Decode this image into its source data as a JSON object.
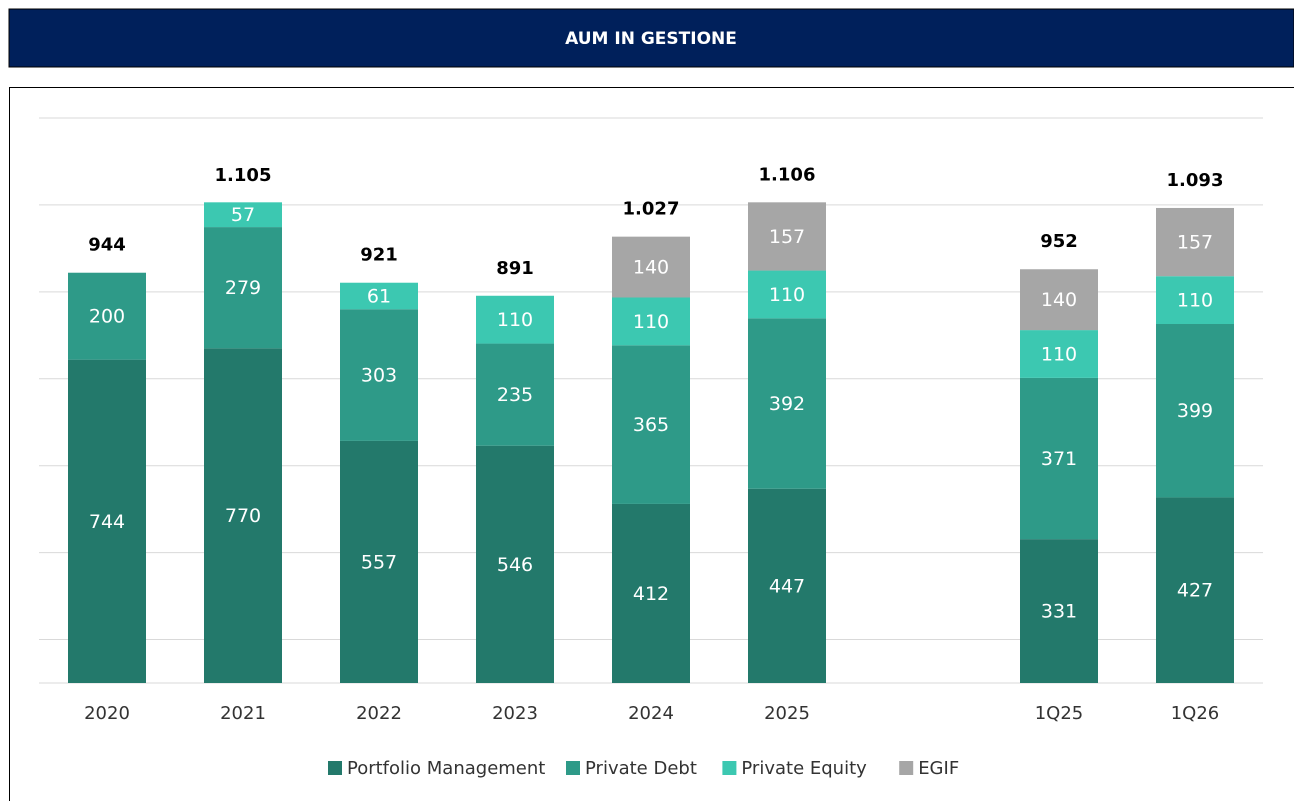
{
  "header": {
    "title": "AUM IN GESTIONE"
  },
  "chart_data": {
    "type": "stacked-bar",
    "categories": [
      "2020",
      "2021",
      "2022",
      "2023",
      "2024",
      "2025",
      null,
      "1Q25",
      "1Q26"
    ],
    "series": [
      {
        "name": "Portfolio Management",
        "color": "#23796b",
        "values": [
          744,
          770,
          557,
          546,
          412,
          447,
          null,
          331,
          427
        ]
      },
      {
        "name": "Private Debt",
        "color": "#2e9a88",
        "values": [
          200,
          279,
          303,
          235,
          365,
          392,
          null,
          371,
          399
        ]
      },
      {
        "name": "Private Equity",
        "color": "#3cc8b1",
        "values": [
          null,
          57,
          61,
          110,
          110,
          110,
          null,
          110,
          110
        ]
      },
      {
        "name": "EGIF",
        "color": "#a6a6a6",
        "values": [
          null,
          null,
          null,
          null,
          140,
          157,
          null,
          140,
          157
        ]
      }
    ],
    "totals": {
      "values": [
        944,
        1105,
        921,
        891,
        1027,
        1106,
        null,
        952,
        1093
      ],
      "value_labels": [
        "944",
        "1.105",
        "921",
        "891",
        "1.027",
        "1.106",
        null,
        "952",
        "1.093"
      ]
    },
    "ylim": [
      0,
      1300
    ],
    "yticks": [
      100,
      300,
      500,
      700,
      900,
      1100,
      1300
    ],
    "ytick_labels": false,
    "grid": true,
    "legend": "bottom"
  }
}
